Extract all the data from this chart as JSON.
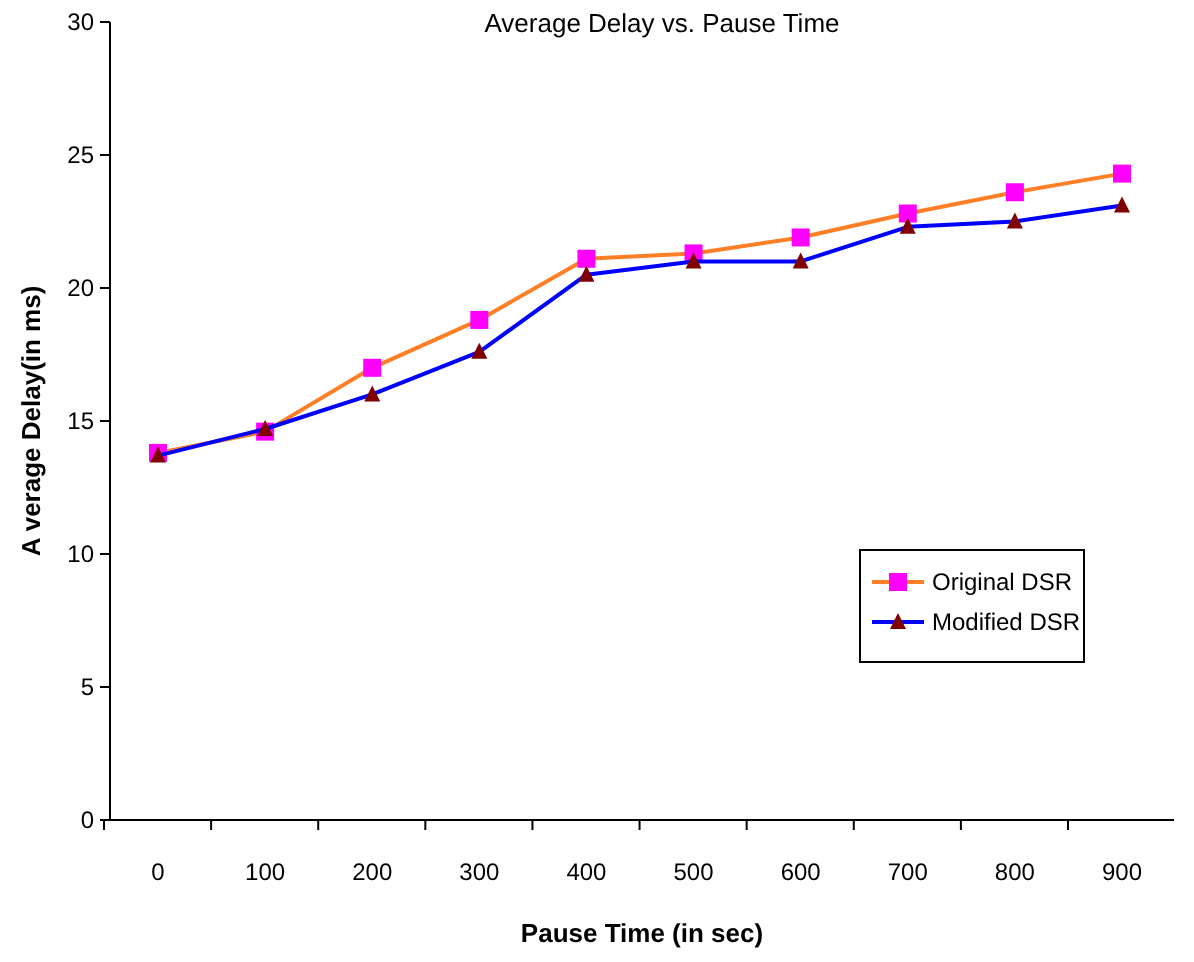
{
  "chart_data": {
    "type": "line",
    "title": "Average Delay vs. Pause Time",
    "xlabel": "Pause Time (in sec)",
    "ylabel": "A verage Delay(in ms)",
    "categories": [
      "0",
      "100",
      "200",
      "300",
      "400",
      "500",
      "600",
      "700",
      "800",
      "900"
    ],
    "series": [
      {
        "name": "Original DSR",
        "color": "#ff7f27",
        "marker": "square",
        "values": [
          13.8,
          14.6,
          17.0,
          18.8,
          21.1,
          21.3,
          21.9,
          22.8,
          23.6,
          24.3
        ]
      },
      {
        "name": "Modified DSR",
        "color": "#0000ff",
        "marker": "triangle",
        "values": [
          13.7,
          14.7,
          16.0,
          17.6,
          20.5,
          21.0,
          21.0,
          22.3,
          22.5,
          23.1
        ]
      }
    ],
    "ylim": [
      0,
      30
    ],
    "yticks": [
      0,
      5,
      10,
      15,
      20,
      25,
      30
    ],
    "grid": false,
    "legend": "right",
    "line_style": "solid"
  }
}
